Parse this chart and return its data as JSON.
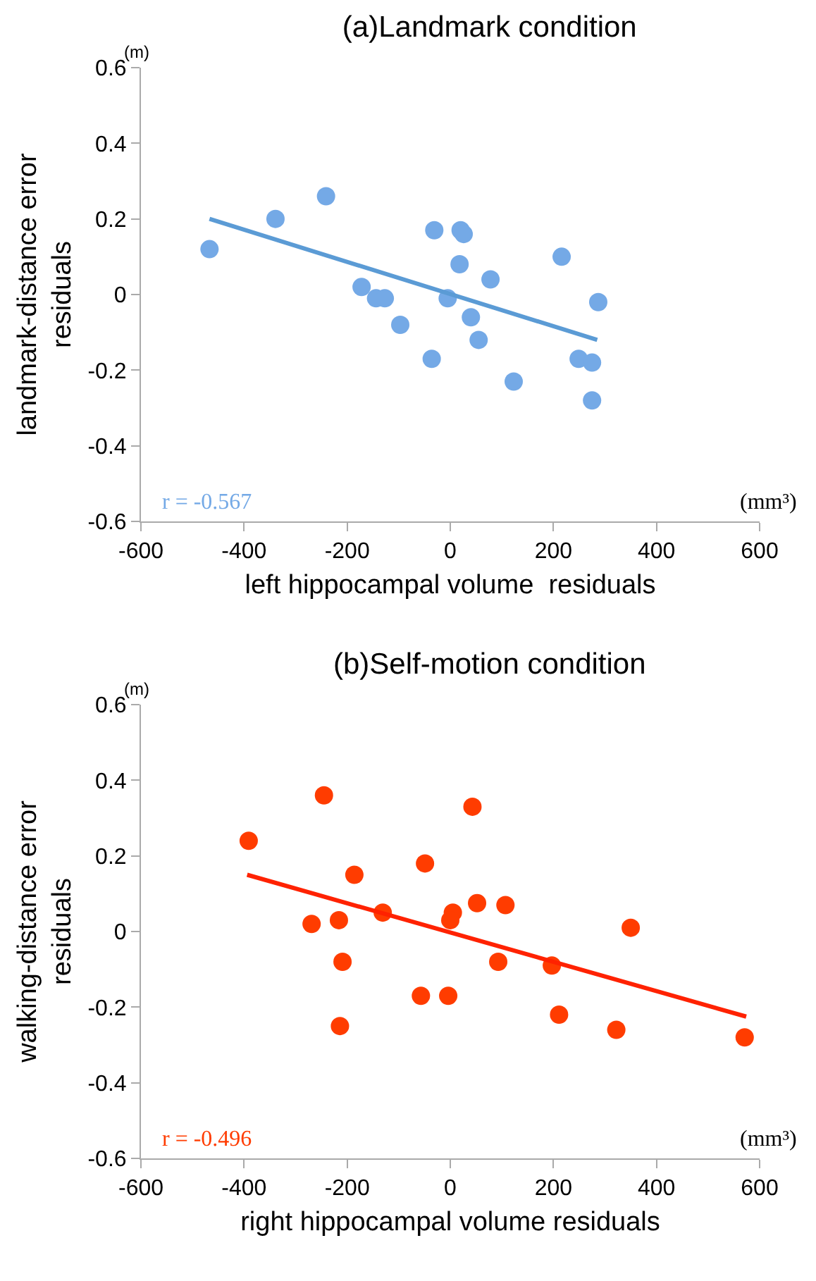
{
  "chart_data": [
    {
      "type": "scatter",
      "title": "(a)Landmark condition",
      "xlabel": "left hippocampal volume  residuals",
      "ylabel": "landmark-distance error residuals",
      "annotations": [
        "(m)",
        "(mm³)",
        "r = -0.567"
      ],
      "xlim": [
        -600,
        600
      ],
      "xticks": [
        -600,
        -400,
        -200,
        0,
        200,
        400,
        600
      ],
      "ylim": [
        -0.6,
        0.6
      ],
      "yticks": [
        -0.6,
        -0.4,
        -0.2,
        0,
        0.2,
        0.4,
        0.6
      ],
      "grid": false,
      "series": [
        {
          "marker": "circle",
          "color": "#74a9e6",
          "x": [
            -467,
            -339,
            -241,
            -31,
            20,
            26,
            216,
            18,
            78,
            -172,
            -144,
            -127,
            -5,
            287,
            -97,
            40,
            55,
            -36,
            123,
            249,
            275,
            275
          ],
          "values": [
            0.12,
            0.2,
            0.26,
            0.17,
            0.17,
            0.16,
            0.1,
            0.08,
            0.04,
            0.02,
            -0.01,
            -0.01,
            -0.01,
            -0.02,
            -0.08,
            -0.06,
            -0.12,
            -0.17,
            -0.23,
            -0.17,
            -0.18,
            -0.28
          ]
        },
        {
          "type": "line",
          "marker": "none",
          "color": "#5b9bd5",
          "x": [
            -467,
            285
          ],
          "values": [
            0.2,
            -0.12
          ]
        }
      ]
    },
    {
      "type": "scatter",
      "title": "(b)Self-motion condition",
      "xlabel": "right hippocampal volume residuals",
      "ylabel": "walking-distance error residuals",
      "annotations": [
        "(m)",
        "(mm³)",
        "r = -0.496"
      ],
      "xlim": [
        -600,
        600
      ],
      "xticks": [
        -600,
        -400,
        -200,
        0,
        200,
        400,
        600
      ],
      "ylim": [
        -0.6,
        0.6
      ],
      "yticks": [
        -0.6,
        -0.4,
        -0.2,
        0,
        0.2,
        0.4,
        0.6
      ],
      "grid": false,
      "series": [
        {
          "marker": "circle",
          "color": "#ff3c00",
          "x": [
            -391,
            -245,
            43,
            -186,
            -49,
            -131,
            -269,
            -216,
            5,
            0,
            52,
            107,
            350,
            -209,
            93,
            197,
            -57,
            -4,
            -214,
            211,
            322,
            571
          ],
          "values": [
            0.24,
            0.36,
            0.33,
            0.15,
            0.18,
            0.05,
            0.02,
            0.03,
            0.05,
            0.03,
            0.075,
            0.07,
            0.01,
            -0.08,
            -0.08,
            -0.09,
            -0.17,
            -0.17,
            -0.25,
            -0.22,
            -0.26,
            -0.28
          ]
        },
        {
          "type": "line",
          "marker": "none",
          "color": "#ff2200",
          "x": [
            -394,
            574
          ],
          "values": [
            0.15,
            -0.225
          ]
        }
      ]
    }
  ]
}
